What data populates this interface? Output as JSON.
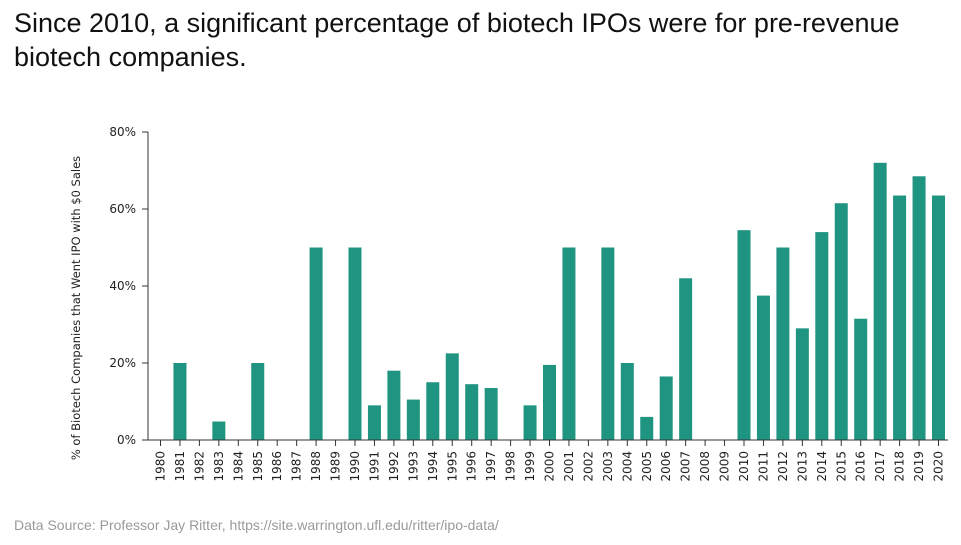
{
  "title": "Since 2010, a significant percentage of biotech IPOs were for pre-revenue biotech companies.",
  "source": "Data Source: Professor Jay Ritter, https://site.warrington.ufl.edu/ritter/ipo-data/",
  "colors": {
    "bar": "#1f9480",
    "axis": "#333333"
  },
  "chart_data": {
    "type": "bar",
    "title": "",
    "xlabel": "",
    "ylabel": "% of Biotech Companies that Went IPO with $0 Sales",
    "ylim": [
      0,
      80
    ],
    "yticks": [
      0,
      20,
      40,
      60,
      80
    ],
    "ytick_labels": [
      "0%",
      "20%",
      "40%",
      "60%",
      "80%"
    ],
    "grid": false,
    "categories": [
      "1980",
      "1981",
      "1982",
      "1983",
      "1984",
      "1985",
      "1986",
      "1987",
      "1988",
      "1989",
      "1990",
      "1991",
      "1992",
      "1993",
      "1994",
      "1995",
      "1996",
      "1997",
      "1998",
      "1999",
      "2000",
      "2001",
      "2002",
      "2003",
      "2004",
      "2005",
      "2006",
      "2007",
      "2008",
      "2009",
      "2010",
      "2011",
      "2012",
      "2013",
      "2014",
      "2015",
      "2016",
      "2017",
      "2018",
      "2019",
      "2020"
    ],
    "values": [
      0,
      20,
      0,
      4.8,
      0,
      20,
      0,
      0,
      50,
      0,
      50,
      9,
      18,
      10.5,
      15,
      22.5,
      14.5,
      13.5,
      0,
      9,
      19.5,
      50,
      0,
      50,
      20,
      6,
      16.5,
      42,
      0,
      0,
      54.5,
      37.5,
      50,
      29,
      54,
      61.5,
      31.5,
      72,
      63.5,
      68.5,
      63.5
    ]
  }
}
